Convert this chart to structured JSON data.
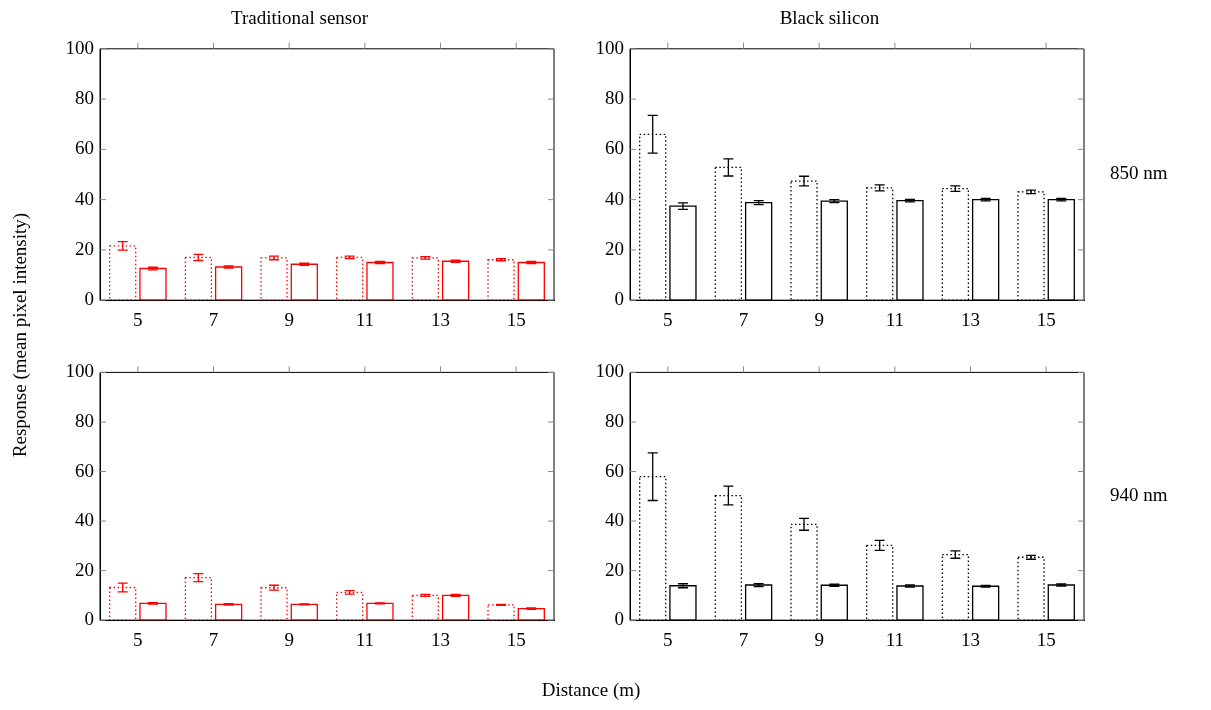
{
  "chart_data": [
    {
      "type": "bar",
      "title": "Traditional sensor",
      "categories": [
        "5",
        "7",
        "9",
        "11",
        "13",
        "15"
      ],
      "ylim": [
        0,
        100
      ],
      "yticks": [
        0,
        20,
        40,
        60,
        80,
        100
      ],
      "grid": false,
      "ylabel": "Response (mean pixel intensity)",
      "series": [
        {
          "color": "#ff0000",
          "line_style": "dotted",
          "values": [
            21.6,
            17.0,
            16.8,
            17.0,
            16.8,
            16.1
          ],
          "errors": [
            1.7,
            1.2,
            0.7,
            0.5,
            0.5,
            0.4
          ]
        },
        {
          "color": "#ff0000",
          "line_style": "solid",
          "values": [
            12.6,
            13.2,
            14.3,
            15.0,
            15.5,
            15.0
          ],
          "errors": [
            0.5,
            0.4,
            0.4,
            0.4,
            0.4,
            0.4
          ]
        }
      ]
    },
    {
      "type": "bar",
      "title": "Black silicon",
      "categories": [
        "5",
        "7",
        "9",
        "11",
        "13",
        "15"
      ],
      "ylim": [
        0,
        100
      ],
      "yticks": [
        0,
        20,
        40,
        60,
        80,
        100
      ],
      "grid": false,
      "annotations": [
        "850 nm"
      ],
      "series": [
        {
          "color": "#000000",
          "line_style": "dotted",
          "values": [
            66.0,
            52.8,
            47.4,
            44.7,
            44.4,
            43.1
          ],
          "errors": [
            7.5,
            3.4,
            1.9,
            1.2,
            1.1,
            0.7
          ]
        },
        {
          "color": "#000000",
          "line_style": "solid",
          "values": [
            37.4,
            38.8,
            39.4,
            39.6,
            40.0,
            40.0
          ],
          "errors": [
            1.3,
            0.8,
            0.6,
            0.5,
            0.5,
            0.5
          ]
        }
      ]
    },
    {
      "type": "bar",
      "categories": [
        "5",
        "7",
        "9",
        "11",
        "13",
        "15"
      ],
      "ylim": [
        0,
        100
      ],
      "yticks": [
        0,
        20,
        40,
        60,
        80,
        100
      ],
      "grid": false,
      "xlabel": "Distance (m)",
      "series": [
        {
          "color": "#ff0000",
          "line_style": "dotted",
          "values": [
            13.2,
            17.2,
            13.1,
            11.2,
            10.0,
            6.2
          ],
          "errors": [
            1.8,
            1.6,
            1.0,
            0.7,
            0.4,
            0.2
          ]
        },
        {
          "color": "#ff0000",
          "line_style": "solid",
          "values": [
            6.8,
            6.4,
            6.4,
            6.8,
            10.0,
            4.7
          ],
          "errors": [
            0.3,
            0.3,
            0.2,
            0.2,
            0.4,
            0.3
          ]
        }
      ]
    },
    {
      "type": "bar",
      "categories": [
        "5",
        "7",
        "9",
        "11",
        "13",
        "15"
      ],
      "ylim": [
        0,
        100
      ],
      "yticks": [
        0,
        20,
        40,
        60,
        80,
        100
      ],
      "grid": false,
      "annotations": [
        "940 nm"
      ],
      "series": [
        {
          "color": "#000000",
          "line_style": "dotted",
          "values": [
            57.9,
            50.3,
            38.7,
            30.2,
            26.5,
            25.4
          ],
          "errors": [
            9.6,
            3.8,
            2.4,
            2.0,
            1.5,
            0.8
          ]
        },
        {
          "color": "#000000",
          "line_style": "solid",
          "values": [
            13.9,
            14.2,
            14.1,
            13.8,
            13.7,
            14.2
          ],
          "errors": [
            0.8,
            0.6,
            0.4,
            0.4,
            0.3,
            0.4
          ]
        }
      ]
    }
  ]
}
